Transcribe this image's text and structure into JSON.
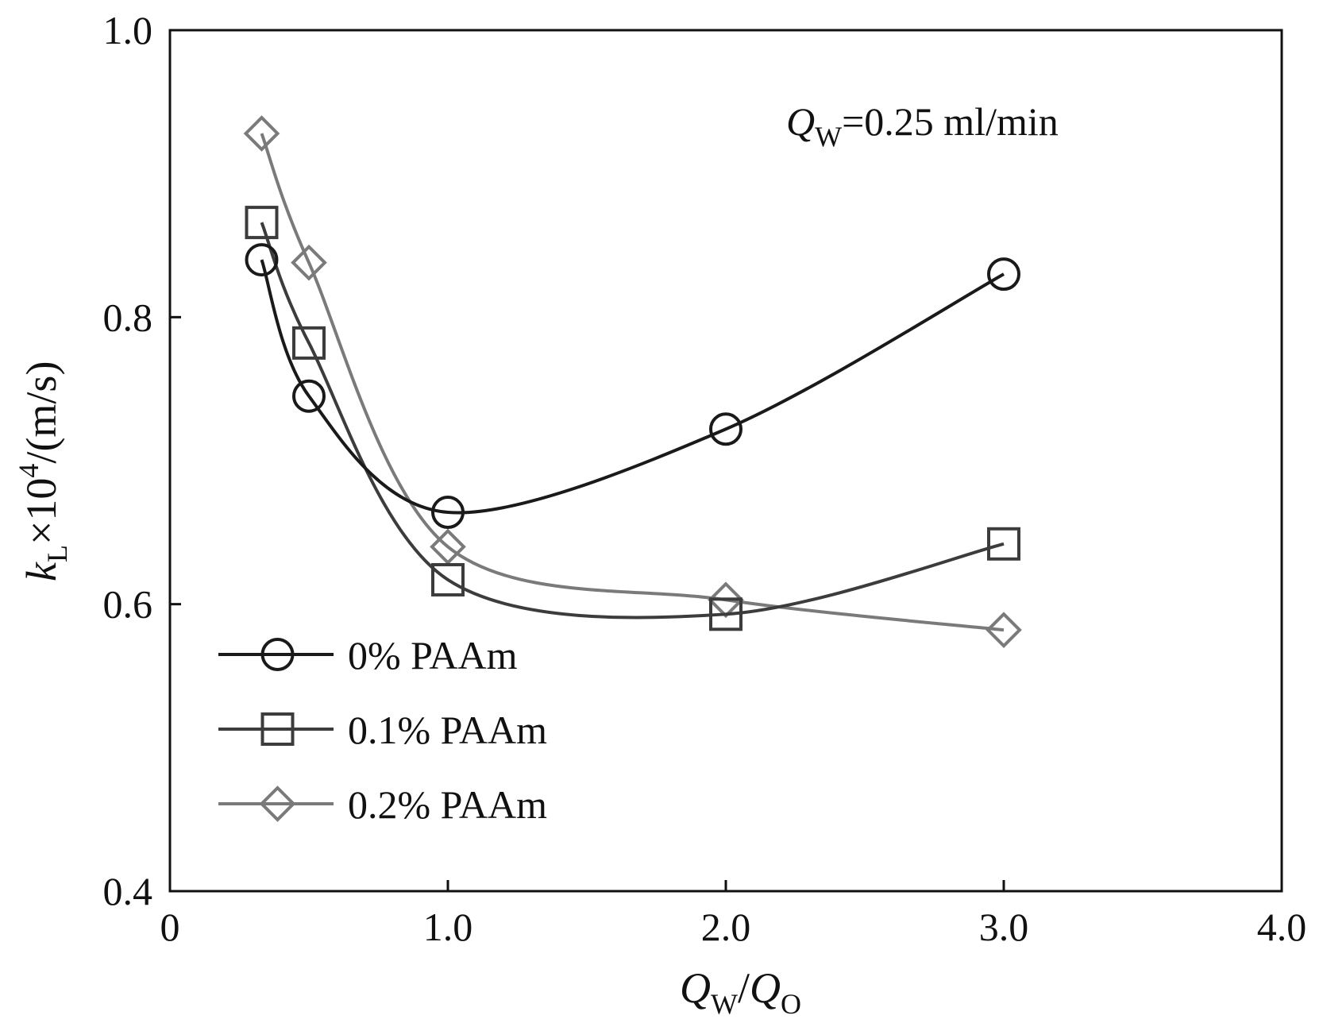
{
  "chart_data": {
    "type": "line",
    "annotation": {
      "symbol": "Q",
      "subscript": "W",
      "value_text": "=0.25 ml/min"
    },
    "xlabel": {
      "num_symbol": "Q",
      "num_subscript": "W",
      "separator": "/",
      "den_symbol": "Q",
      "den_subscript": "O"
    },
    "ylabel": {
      "symbol": "k",
      "subscript": "L",
      "times": "×10",
      "power": "4",
      "unit": "/(m/s)"
    },
    "xlim": [
      0,
      4.0
    ],
    "ylim": [
      0.4,
      1.0
    ],
    "x_ticks": [
      0,
      1.0,
      2.0,
      3.0,
      4.0
    ],
    "x_tick_labels": [
      "0",
      "1.0",
      "2.0",
      "3.0",
      "4.0"
    ],
    "y_ticks": [
      0.4,
      0.6,
      0.8,
      1.0
    ],
    "y_tick_labels": [
      "0.4",
      "0.6",
      "0.8",
      "1.0"
    ],
    "grid": false,
    "legend_position": "bottom-left",
    "series": [
      {
        "name": "0% PAAm",
        "marker": "circle",
        "color": "#1a1a1a",
        "x": [
          0.33,
          0.5,
          1.0,
          2.0,
          3.0
        ],
        "y": [
          0.84,
          0.745,
          0.664,
          0.722,
          0.83
        ]
      },
      {
        "name": "0.1% PAAm",
        "marker": "square",
        "color": "#3c3c3c",
        "x": [
          0.33,
          0.5,
          1.0,
          2.0,
          3.0
        ],
        "y": [
          0.866,
          0.782,
          0.617,
          0.593,
          0.642
        ]
      },
      {
        "name": "0.2% PAAm",
        "marker": "diamond",
        "color": "#7a7a7a",
        "x": [
          0.33,
          0.5,
          1.0,
          2.0,
          3.0
        ],
        "y": [
          0.928,
          0.838,
          0.64,
          0.603,
          0.582
        ]
      }
    ]
  }
}
